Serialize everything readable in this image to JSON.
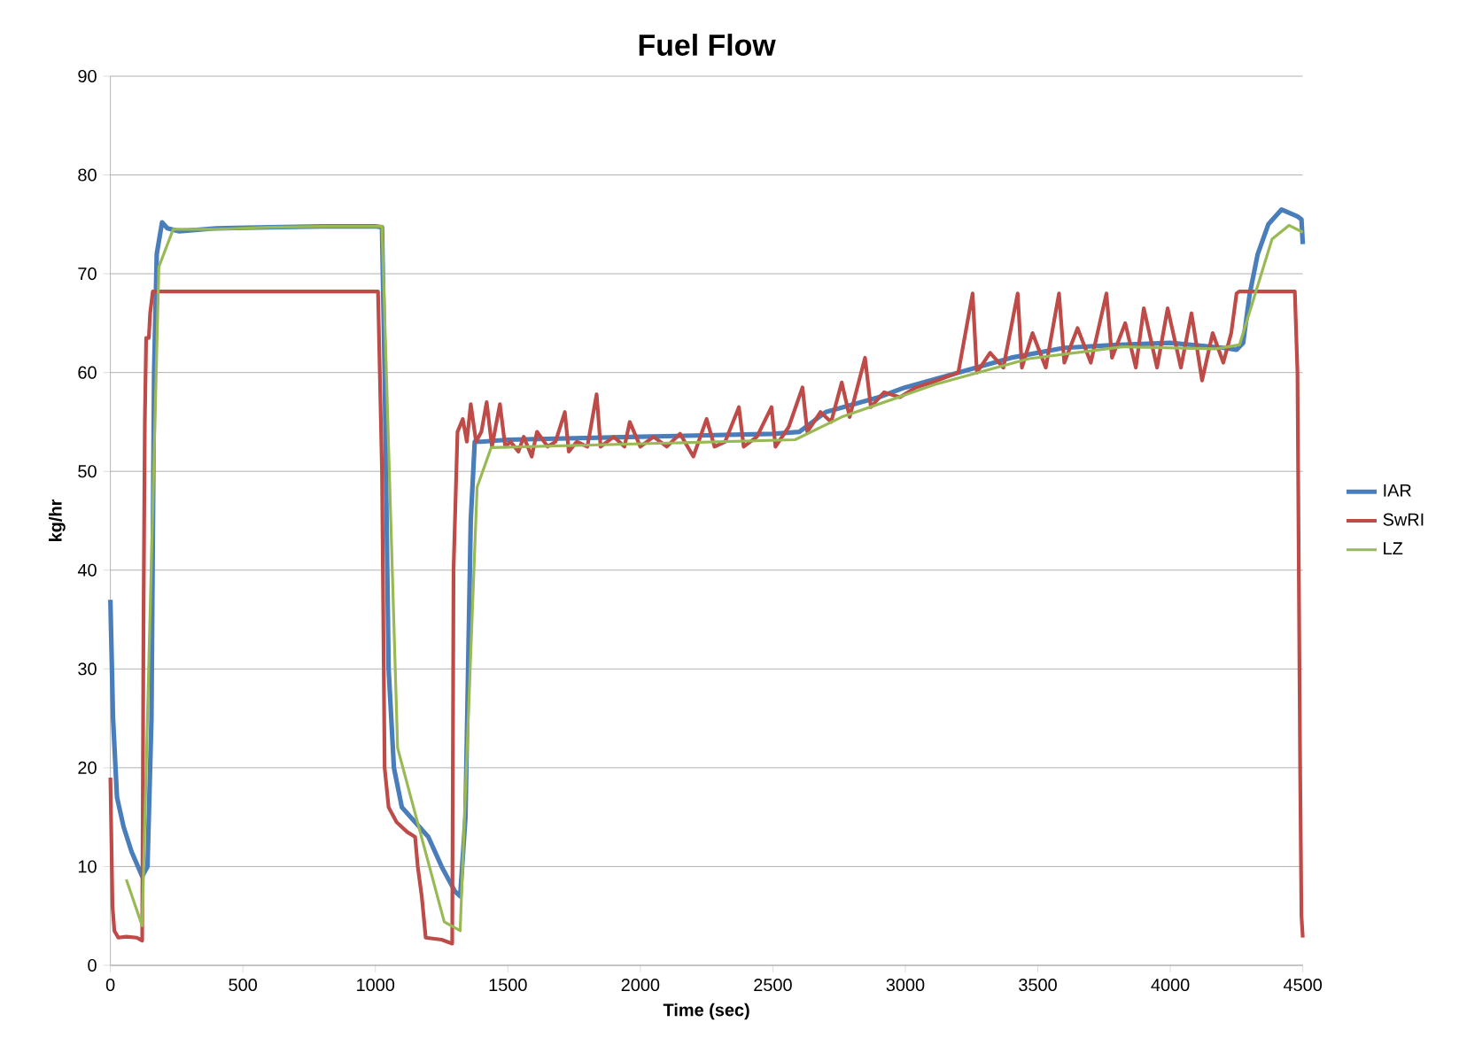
{
  "chart_data": {
    "type": "line",
    "title": "Fuel Flow",
    "xlabel": "Time (sec)",
    "ylabel": "kg/hr",
    "xlim": [
      0,
      4500
    ],
    "xticks": [
      0,
      500,
      1000,
      1500,
      2000,
      2500,
      3000,
      3500,
      4000,
      4500
    ],
    "ylim": [
      0,
      90
    ],
    "yticks": [
      0,
      10,
      20,
      30,
      40,
      50,
      60,
      70,
      80,
      90
    ],
    "grid": "y",
    "legend": "right",
    "marker": "none",
    "line_style": "solid",
    "series": [
      {
        "name": "IAR",
        "color": "#4a7ebb",
        "x": [
          0,
          10,
          25,
          50,
          80,
          120,
          140,
          155,
          165,
          175,
          195,
          215,
          260,
          400,
          600,
          800,
          1000,
          1025,
          1035,
          1050,
          1070,
          1100,
          1150,
          1200,
          1250,
          1300,
          1320,
          1340,
          1360,
          1375,
          1400,
          1500,
          2000,
          2500,
          2600,
          2700,
          2900,
          3000,
          3200,
          3400,
          3600,
          3800,
          4000,
          4200,
          4250,
          4275,
          4300,
          4330,
          4370,
          4420,
          4480,
          4495,
          4500
        ],
        "values": [
          37,
          25,
          17,
          14,
          11.5,
          9,
          10,
          25,
          60,
          72,
          75.2,
          74.6,
          74.3,
          74.6,
          74.7,
          74.8,
          74.8,
          74.7,
          60,
          30,
          20,
          16,
          14.5,
          13,
          10,
          7.5,
          7,
          15,
          45,
          53,
          53,
          53.2,
          53.5,
          53.8,
          54,
          56,
          57.5,
          58.5,
          60,
          61.5,
          62.5,
          62.8,
          63,
          62.5,
          62.3,
          63,
          68,
          72,
          75,
          76.5,
          75.8,
          75.5,
          73
        ]
      },
      {
        "name": "SwRI",
        "color": "#be4b48",
        "x": [
          0,
          8,
          15,
          30,
          60,
          100,
          120,
          125,
          130,
          135,
          145,
          150,
          160,
          1010,
          1025,
          1035,
          1050,
          1080,
          1120,
          1150,
          1160,
          1175,
          1190,
          1250,
          1290,
          1295,
          1310,
          1330,
          1345,
          1360,
          1380,
          1400,
          1420,
          1440,
          1470,
          1490,
          1510,
          1540,
          1560,
          1590,
          1610,
          1650,
          1680,
          1715,
          1730,
          1760,
          1800,
          1835,
          1850,
          1900,
          1940,
          1960,
          2000,
          2050,
          2100,
          2150,
          2200,
          2250,
          2280,
          2320,
          2372,
          2390,
          2440,
          2495,
          2510,
          2560,
          2612,
          2630,
          2680,
          2720,
          2760,
          2790,
          2848,
          2870,
          2920,
          2980,
          3040,
          3100,
          3150,
          3200,
          3254,
          3270,
          3320,
          3370,
          3424,
          3440,
          3480,
          3530,
          3580,
          3600,
          3650,
          3700,
          3759,
          3780,
          3830,
          3870,
          3900,
          3950,
          3990,
          4040,
          4080,
          4120,
          4160,
          4200,
          4230,
          4250,
          4260,
          4470,
          4480,
          4490,
          4495,
          4500
        ],
        "values": [
          19,
          6,
          3.5,
          2.8,
          2.9,
          2.8,
          2.5,
          35,
          55,
          63.5,
          63.5,
          66,
          68.2,
          68.2,
          50,
          20,
          16,
          14.5,
          13.5,
          13,
          10,
          7,
          2.8,
          2.6,
          2.2,
          40,
          54,
          55.3,
          53,
          56.8,
          53,
          54,
          57,
          52.5,
          56.8,
          52.5,
          53,
          52,
          53.5,
          51.5,
          54,
          52.5,
          53,
          56,
          52,
          53,
          52.5,
          57.8,
          52.5,
          53.5,
          52.5,
          55,
          52.5,
          53.5,
          52.5,
          53.8,
          51.5,
          55.3,
          52.5,
          53,
          56.5,
          52.5,
          53.5,
          56.5,
          52.5,
          54.5,
          58.5,
          54,
          56,
          55,
          59,
          55.5,
          61.5,
          56.5,
          58,
          57.5,
          58.5,
          59,
          59.5,
          60,
          68,
          60,
          62,
          60.5,
          68,
          60.5,
          64,
          60.5,
          68,
          61,
          64.5,
          61,
          68,
          61.5,
          65,
          60.5,
          66.5,
          60.5,
          66.5,
          60.5,
          66,
          59.2,
          64,
          61,
          64,
          68,
          68.2,
          68.2,
          60,
          20,
          5,
          2.8
        ]
      },
      {
        "name": "LZ",
        "color": "#98b954",
        "x": [
          60,
          120,
          183,
          237,
          400,
          600,
          800,
          1025,
          1084,
          1260,
          1320,
          1384,
          1437,
          2584,
          2760,
          3113,
          3466,
          3819,
          4172,
          4261,
          4384,
          4448,
          4500
        ],
        "values": [
          8.7,
          4,
          70.7,
          74.5,
          74.5,
          74.7,
          74.8,
          74.8,
          22,
          4.4,
          3.5,
          48.4,
          52.4,
          53.2,
          55.5,
          58.8,
          61.4,
          62.6,
          62.4,
          62.8,
          73.5,
          74.9,
          74.2
        ]
      }
    ]
  }
}
